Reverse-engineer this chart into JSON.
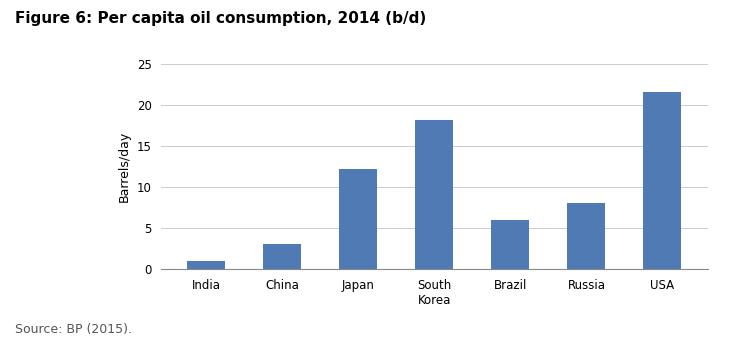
{
  "title": "Figure 6: Per capita oil consumption, 2014 (b/d)",
  "categories": [
    "India",
    "China",
    "Japan",
    "South\nKorea",
    "Brazil",
    "Russia",
    "USA"
  ],
  "values": [
    1.0,
    3.0,
    12.2,
    18.2,
    6.0,
    8.1,
    21.5
  ],
  "bar_color": "#4F7AB3",
  "ylabel": "Barrels/day",
  "ylim": [
    0,
    25
  ],
  "yticks": [
    0,
    5,
    10,
    15,
    20,
    25
  ],
  "source_text": "Source: BP (2015).",
  "title_fontsize": 11,
  "axis_fontsize": 9,
  "tick_fontsize": 8.5,
  "source_fontsize": 9,
  "background_color": "#ffffff",
  "grid_color": "#cccccc",
  "bar_width": 0.5
}
